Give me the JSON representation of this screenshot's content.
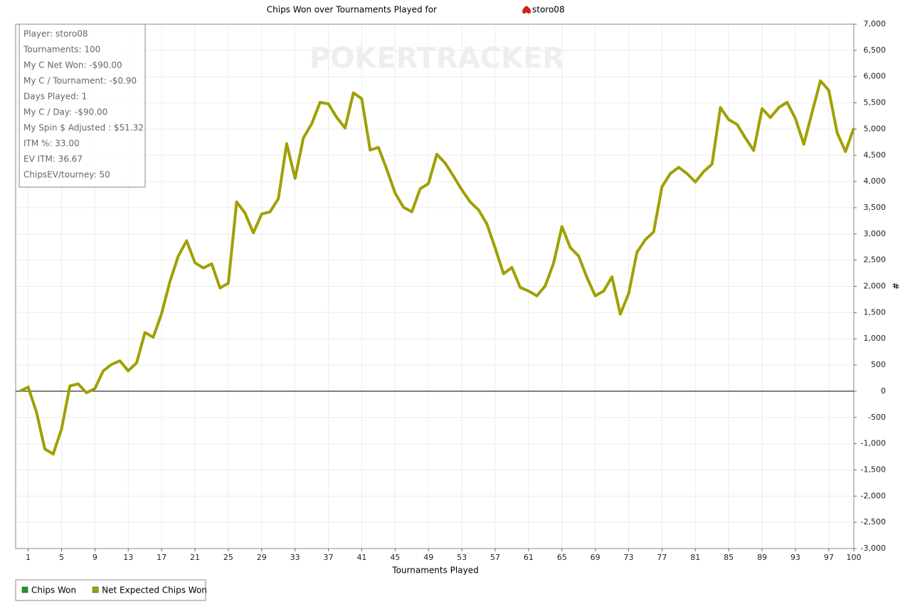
{
  "chart_data": {
    "type": "line",
    "title": "Chips Won over Tournaments Played for",
    "title_player": "storo08",
    "watermark": "POKERTRACKER",
    "x_label": "Tournaments Played",
    "y_label": "#",
    "stats": [
      "Player: storo08",
      "Tournaments: 100",
      "My C Net Won: -$90.00",
      "My C / Tournament: -$0.90",
      "Days Played: 1",
      "My C / Day: -$90.00",
      "My Spin $ Adjusted : $51.32",
      "ITM %: 33.00",
      "EV ITM: 36.67",
      "ChipsEV/tourney: 50"
    ],
    "x": [
      0,
      1,
      2,
      3,
      4,
      5,
      6,
      7,
      8,
      9,
      10,
      11,
      12,
      13,
      14,
      15,
      16,
      17,
      18,
      19,
      20,
      21,
      22,
      23,
      24,
      25,
      26,
      27,
      28,
      29,
      30,
      31,
      32,
      33,
      34,
      35,
      36,
      37,
      38,
      39,
      40,
      41,
      42,
      43,
      44,
      45,
      46,
      47,
      48,
      49,
      50,
      51,
      52,
      53,
      54,
      55,
      56,
      57,
      58,
      59,
      60,
      61,
      62,
      63,
      64,
      65,
      66,
      67,
      68,
      69,
      70,
      71,
      72,
      73,
      74,
      75,
      76,
      77,
      78,
      79,
      80,
      81,
      82,
      83,
      84,
      85,
      86,
      87,
      88,
      89,
      90,
      91,
      92,
      93,
      94,
      95,
      96,
      97,
      98,
      99,
      100
    ],
    "series": [
      {
        "name": "Chips Won",
        "color": "#1f9a1f"
      },
      {
        "name": "Net Expected Chips Won",
        "color": "#a0a000",
        "values": [
          0,
          80,
          -400,
          -1100,
          -1200,
          -720,
          100,
          140,
          -30,
          50,
          390,
          510,
          580,
          390,
          540,
          1120,
          1030,
          1480,
          2090,
          2580,
          2870,
          2450,
          2350,
          2430,
          1970,
          2060,
          3610,
          3400,
          3020,
          3380,
          3420,
          3670,
          4720,
          4060,
          4830,
          5100,
          5510,
          5480,
          5220,
          5020,
          5690,
          5580,
          4600,
          4650,
          4230,
          3780,
          3510,
          3420,
          3860,
          3960,
          4520,
          4350,
          4100,
          3840,
          3610,
          3460,
          3190,
          2730,
          2240,
          2360,
          1980,
          1910,
          1820,
          2010,
          2440,
          3140,
          2740,
          2580,
          2170,
          1820,
          1910,
          2180,
          1470,
          1860,
          2650,
          2890,
          3040,
          3900,
          4150,
          4270,
          4150,
          3990,
          4190,
          4330,
          5410,
          5180,
          5090,
          4830,
          4590,
          5390,
          5220,
          5410,
          5510,
          5200,
          4710,
          5320,
          5920,
          5740,
          4930,
          4570,
          5020
        ]
      }
    ],
    "xlim": [
      -0.5,
      100
    ],
    "xticks": [
      1,
      5,
      9,
      13,
      17,
      21,
      25,
      29,
      33,
      37,
      41,
      45,
      49,
      53,
      57,
      61,
      65,
      69,
      73,
      77,
      81,
      85,
      89,
      93,
      97,
      100
    ],
    "ylim": [
      -3000,
      7000
    ],
    "yticks": [
      {
        "value": -3000,
        "label": "-3,000"
      },
      {
        "value": -2500,
        "label": "-2,500"
      },
      {
        "value": -2000,
        "label": "-2,000"
      },
      {
        "value": -1500,
        "label": "-1,500"
      },
      {
        "value": -1000,
        "label": "-1,000"
      },
      -500,
      0,
      500,
      {
        "value": 1000,
        "label": "1,000"
      },
      {
        "value": 1500,
        "label": "1,500"
      },
      {
        "value": 2000,
        "label": "2,000"
      },
      {
        "value": 2500,
        "label": "2,500"
      },
      {
        "value": 3000,
        "label": "3,000"
      },
      {
        "value": 3500,
        "label": "3,500"
      },
      {
        "value": 4000,
        "label": "4,000"
      },
      {
        "value": 4500,
        "label": "4,500"
      },
      {
        "value": 5000,
        "label": "5,000"
      },
      {
        "value": 5500,
        "label": "5,500"
      },
      {
        "value": 6000,
        "label": "6,000"
      },
      {
        "value": 6500,
        "label": "6,500"
      },
      {
        "value": 7000,
        "label": "7,000"
      }
    ],
    "grid": true
  }
}
